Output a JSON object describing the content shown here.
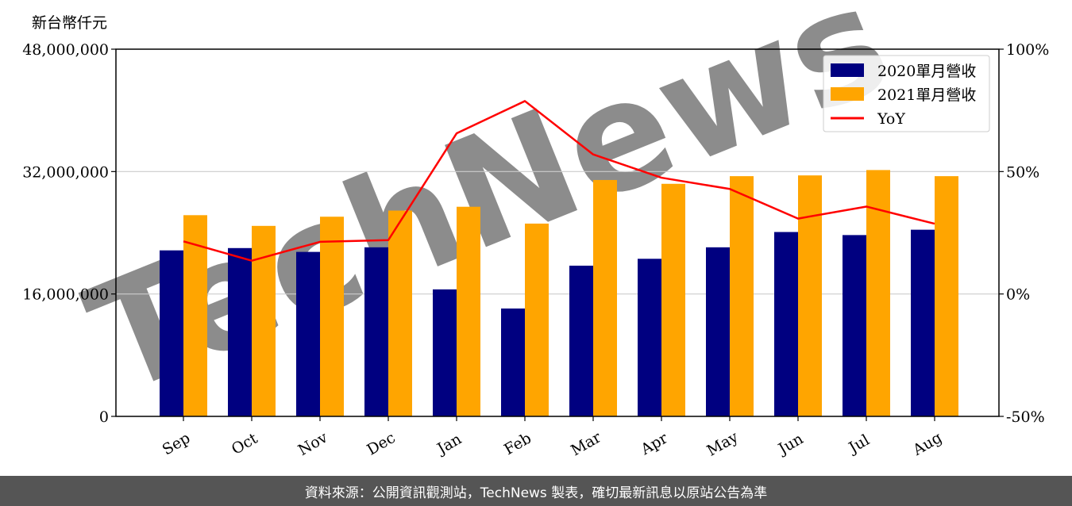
{
  "unit_label": "新台幣仟元",
  "footer_text": "資料來源：公開資訊觀測站，TechNews 製表，確切最新訊息以原站公告為準",
  "watermark_text": "TechNews",
  "chart_data": {
    "type": "bar",
    "categories": [
      "Sep",
      "Oct",
      "Nov",
      "Dec",
      "Jan",
      "Feb",
      "Mar",
      "Apr",
      "May",
      "Jun",
      "Jul",
      "Aug"
    ],
    "series": [
      {
        "name": "2020單月營收",
        "type": "bar",
        "axis": "left",
        "color": "#000080",
        "values": [
          21700000,
          22000000,
          21500000,
          22100000,
          16600000,
          14100000,
          19700000,
          20600000,
          22100000,
          24100000,
          23700000,
          24400000
        ]
      },
      {
        "name": "2021單月營收",
        "type": "bar",
        "axis": "left",
        "color": "#FFA500",
        "values": [
          26300000,
          24900000,
          26100000,
          26900000,
          27400000,
          25200000,
          30900000,
          30400000,
          31400000,
          31500000,
          32200000,
          31400000
        ]
      },
      {
        "name": "YoY",
        "type": "line",
        "axis": "right",
        "color": "#FF0000",
        "values": [
          21.5,
          13.6,
          21.3,
          22.0,
          65.6,
          78.8,
          57.0,
          47.5,
          42.9,
          30.8,
          35.7,
          28.7
        ]
      }
    ],
    "ylim_left": [
      0,
      48000000
    ],
    "yticks_left": [
      "0",
      "16,000,000",
      "32,000,000",
      "48,000,000"
    ],
    "ylim_right": [
      -50,
      100
    ],
    "yticks_right": [
      "-50%",
      "0%",
      "50%",
      "100%"
    ],
    "grid": "horizontal",
    "legend": "top-right"
  }
}
